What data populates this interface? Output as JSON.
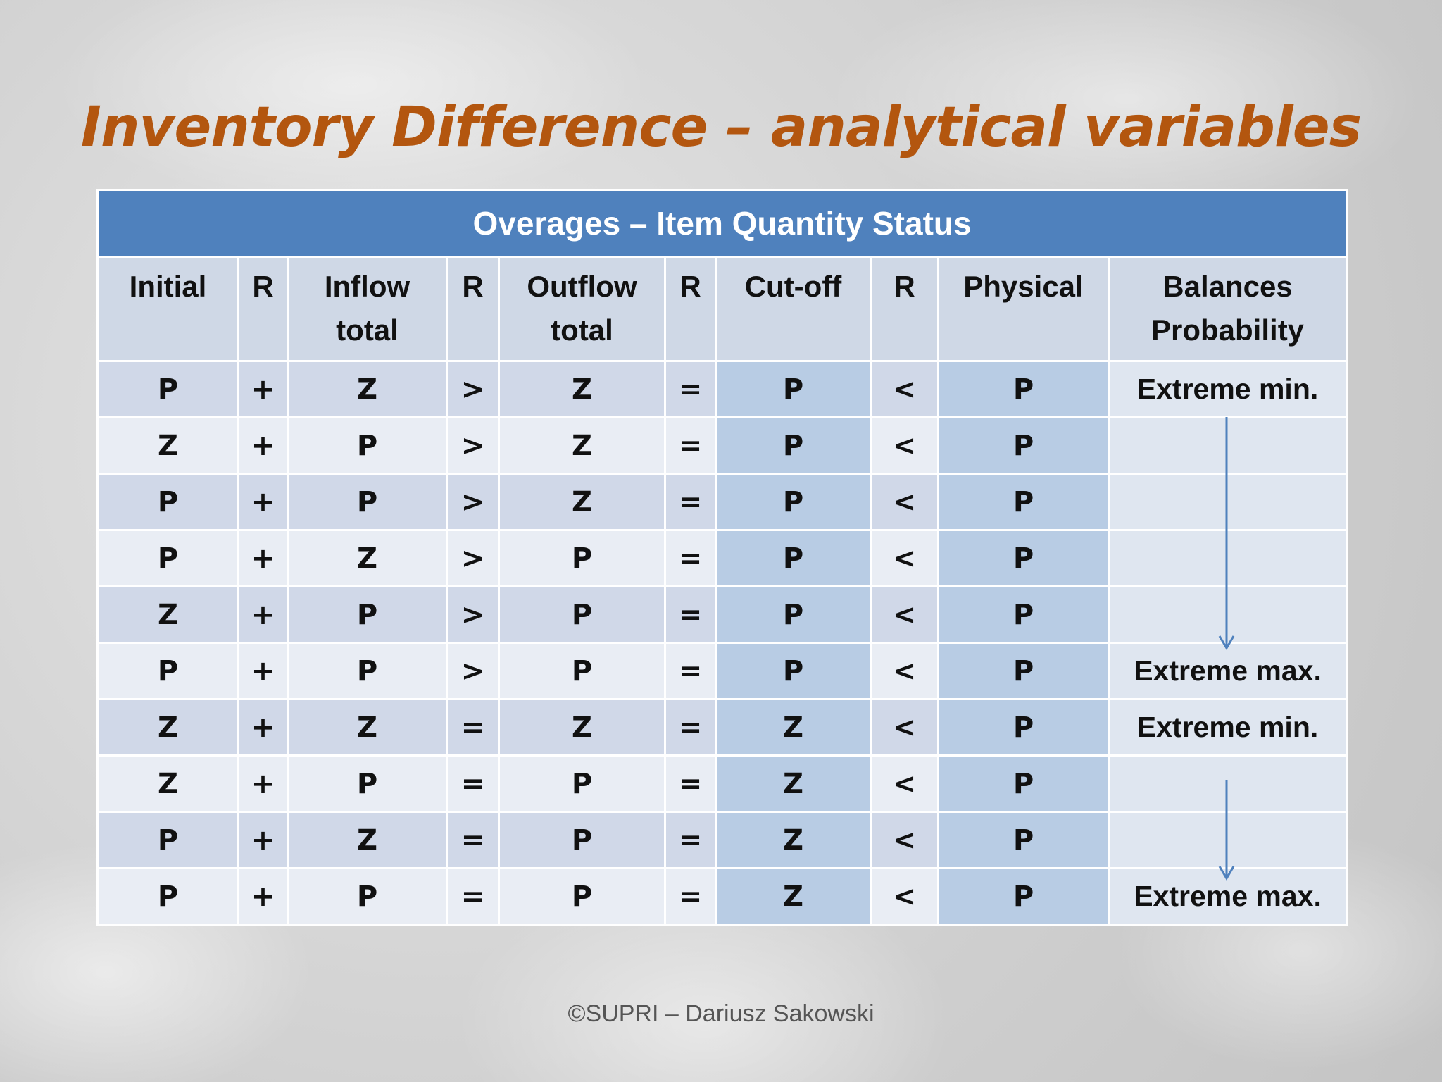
{
  "title": "Inventory Difference – analytical variables",
  "table": {
    "caption": "Overages – Item Quantity Status",
    "headers": [
      [
        "Initial"
      ],
      [
        "R"
      ],
      [
        "Inflow",
        "total"
      ],
      [
        "R"
      ],
      [
        "Outflow",
        "total"
      ],
      [
        "R"
      ],
      [
        "Cut-off"
      ],
      [
        "R"
      ],
      [
        "Physical"
      ],
      [
        "Balances",
        "Probability"
      ]
    ],
    "rows": [
      [
        "P",
        "+",
        "Z",
        ">",
        "Z",
        "=",
        "P",
        "<",
        "P",
        "Extreme min."
      ],
      [
        "Z",
        "+",
        "P",
        ">",
        "Z",
        "=",
        "P",
        "<",
        "P",
        ""
      ],
      [
        "P",
        "+",
        "P",
        ">",
        "Z",
        "=",
        "P",
        "<",
        "P",
        ""
      ],
      [
        "P",
        "+",
        "Z",
        ">",
        "P",
        "=",
        "P",
        "<",
        "P",
        ""
      ],
      [
        "Z",
        "+",
        "P",
        ">",
        "P",
        "=",
        "P",
        "<",
        "P",
        ""
      ],
      [
        "P",
        "+",
        "P",
        ">",
        "P",
        "=",
        "P",
        "<",
        "P",
        "Extreme max."
      ],
      [
        "Z",
        "+",
        "Z",
        "=",
        "Z",
        "=",
        "Z",
        "<",
        "P",
        "Extreme min."
      ],
      [
        "Z",
        "+",
        "P",
        "=",
        "P",
        "=",
        "Z",
        "<",
        "P",
        ""
      ],
      [
        "P",
        "+",
        "Z",
        "=",
        "P",
        "=",
        "Z",
        "<",
        "P",
        ""
      ],
      [
        "P",
        "+",
        "P",
        "=",
        "P",
        "=",
        "Z",
        "<",
        "P",
        "Extreme max."
      ]
    ]
  },
  "colors": {
    "title": "#b3560f",
    "caption_bg": "#4f81bd",
    "arrow": "#4f81bd"
  },
  "footer": "©SUPRI – Dariusz Sakowski"
}
